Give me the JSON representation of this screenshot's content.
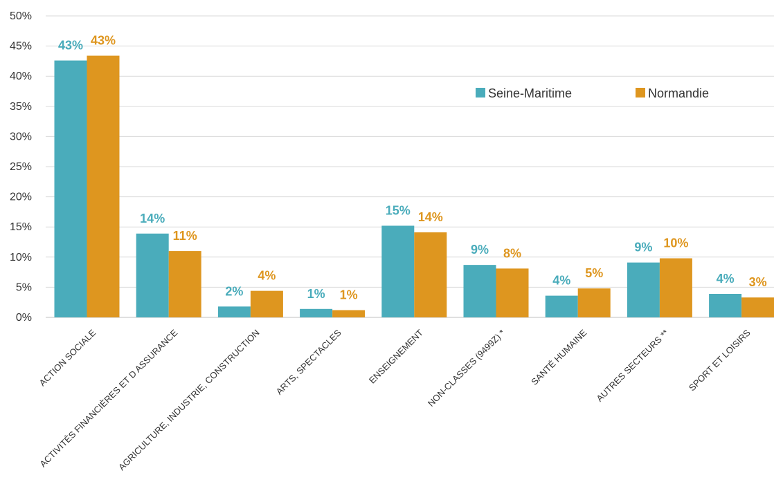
{
  "chart_data": {
    "type": "bar",
    "categories": [
      "ACTION SOCIALE",
      "ACTIVITÉS FINANCIÈRES ET D ASSURANCE",
      "AGRICULTURE, INDUSTRIE, CONSTRUCTION",
      "ARTS, SPECTACLES",
      "ENSEIGNEMENT",
      "NON-CLASSES (9499Z) *",
      "SANTÉ HUMAINE",
      "AUTRES SECTEURS **",
      "SPORT ET LOISIRS"
    ],
    "series": [
      {
        "name": "Seine-Maritime",
        "color": "#4AACBB",
        "values": [
          42.6,
          13.9,
          1.8,
          1.4,
          15.2,
          8.7,
          3.6,
          9.1,
          3.9
        ],
        "labels": [
          "43%",
          "14%",
          "2%",
          "1%",
          "15%",
          "9%",
          "4%",
          "9%",
          "4%"
        ]
      },
      {
        "name": "Normandie",
        "color": "#DE961F",
        "values": [
          43.4,
          11.0,
          4.4,
          1.2,
          14.1,
          8.1,
          4.8,
          9.8,
          3.3
        ],
        "labels": [
          "43%",
          "11%",
          "4%",
          "1%",
          "14%",
          "8%",
          "5%",
          "10%",
          "3%"
        ]
      }
    ],
    "yticks": [
      "0%",
      "5%",
      "10%",
      "15%",
      "20%",
      "25%",
      "30%",
      "35%",
      "40%",
      "45%",
      "50%"
    ],
    "ylim": [
      0,
      50
    ],
    "grid": true,
    "legend_position": "top-right",
    "title": "",
    "xlabel": "",
    "ylabel": ""
  }
}
